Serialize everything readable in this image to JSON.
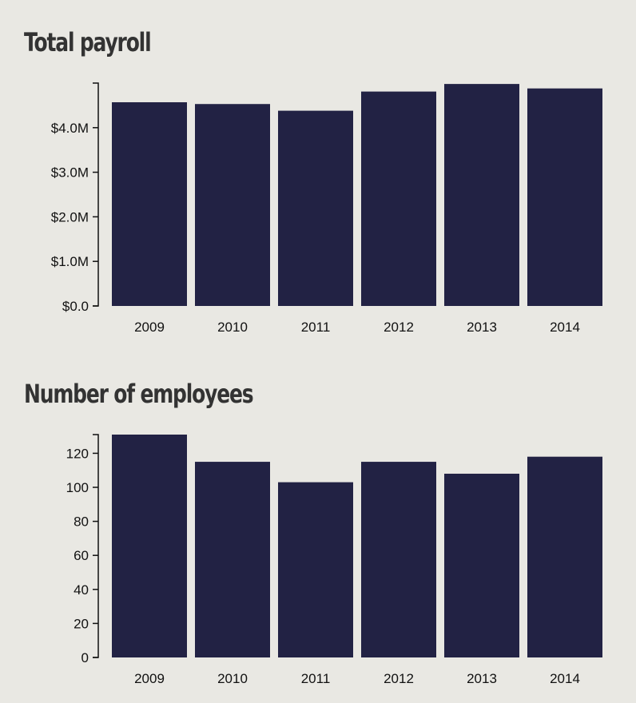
{
  "colors": {
    "bar": "#222244",
    "background": "#e9e8e3",
    "axis": "#111111",
    "title": "#333333"
  },
  "chart_data": [
    {
      "type": "bar",
      "title": "Total payroll",
      "xlabel": "",
      "ylabel": "",
      "categories": [
        "2009",
        "2010",
        "2011",
        "2012",
        "2013",
        "2014"
      ],
      "values": [
        4.57,
        4.53,
        4.38,
        4.81,
        4.98,
        4.88
      ],
      "value_unit": "millions of dollars",
      "ylim": [
        0,
        5.0
      ],
      "yticks": [
        0,
        1,
        2,
        3,
        4
      ],
      "ytick_labels": [
        "$0.0",
        "$1.0M",
        "$2.0M",
        "$3.0M",
        "$4.0M"
      ],
      "grid": false,
      "legend": "none"
    },
    {
      "type": "bar",
      "title": "Number of employees",
      "xlabel": "",
      "ylabel": "",
      "categories": [
        "2009",
        "2010",
        "2011",
        "2012",
        "2013",
        "2014"
      ],
      "values": [
        131,
        115,
        103,
        115,
        108,
        118
      ],
      "ylim": [
        0,
        131
      ],
      "yticks": [
        0,
        20,
        40,
        60,
        80,
        100,
        120
      ],
      "ytick_labels": [
        "0",
        "20",
        "40",
        "60",
        "80",
        "100",
        "120"
      ],
      "grid": false,
      "legend": "none"
    }
  ]
}
